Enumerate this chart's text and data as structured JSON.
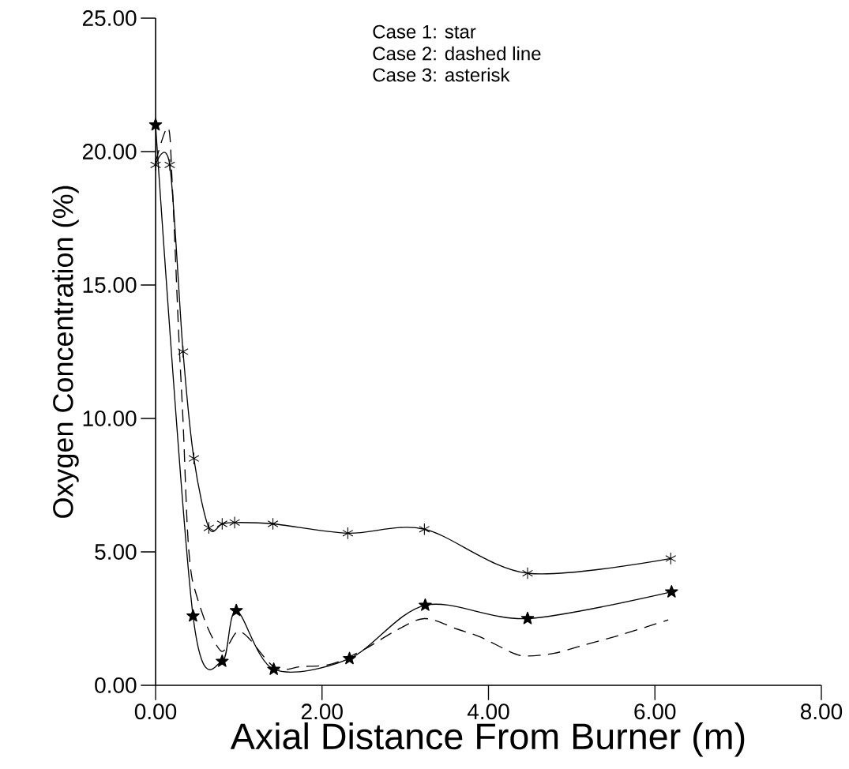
{
  "chart_data": {
    "type": "line",
    "xlabel": "Axial Distance From Burner (m)",
    "ylabel": "Oxygen Concentration (%)",
    "annotations": [
      "Case 1: star",
      "Case 2: dashed line",
      "Case 3: asterisk"
    ],
    "xlim": [
      0,
      8
    ],
    "ylim": [
      0,
      25
    ],
    "xticks": [
      {
        "value": 0,
        "label": "0.00"
      },
      {
        "value": 2,
        "label": "2.00"
      },
      {
        "value": 4,
        "label": "4.00"
      },
      {
        "value": 6,
        "label": "6.00"
      },
      {
        "value": 8,
        "label": "8.00"
      }
    ],
    "yticks": [
      {
        "value": 0,
        "label": "0.00"
      },
      {
        "value": 5,
        "label": "5.00"
      },
      {
        "value": 10,
        "label": "10.00"
      },
      {
        "value": 15,
        "label": "15.00"
      },
      {
        "value": 20,
        "label": "20.00"
      },
      {
        "value": 25,
        "label": "25.00"
      }
    ],
    "series": [
      {
        "color": "#000000",
        "marker": "star",
        "line_style": "solid",
        "x": [
          0.0,
          0.45,
          0.8,
          0.97,
          1.42,
          2.33,
          3.24,
          4.47,
          6.2
        ],
        "values": [
          21.0,
          2.6,
          0.9,
          2.8,
          0.6,
          1.0,
          3.0,
          2.5,
          3.5
        ]
      },
      {
        "color": "#000000",
        "marker": "none",
        "line_style": "dashed",
        "x": [
          0.0,
          0.15,
          0.2,
          0.28,
          0.33,
          0.38,
          0.42,
          0.47,
          0.62,
          0.78,
          0.87,
          0.98,
          1.11,
          1.44,
          1.75,
          2.12,
          2.51,
          2.86,
          3.23,
          3.63,
          3.91,
          4.3,
          4.47,
          4.79,
          5.14,
          5.6,
          6.16
        ],
        "values": [
          19.6,
          20.9,
          18.8,
          13.0,
          9.9,
          6.0,
          4.4,
          3.6,
          2.2,
          1.3,
          1.5,
          2.0,
          1.8,
          0.65,
          0.7,
          0.8,
          1.35,
          2.0,
          2.5,
          2.1,
          1.8,
          1.2,
          1.1,
          1.2,
          1.5,
          1.9,
          2.45
        ]
      },
      {
        "color": "#000000",
        "marker": "cross",
        "line_style": "solid",
        "x": [
          0.0,
          0.17,
          0.33,
          0.46,
          0.64,
          0.8,
          0.95,
          1.41,
          2.31,
          3.23,
          4.47,
          6.19
        ],
        "values": [
          19.5,
          19.5,
          12.5,
          8.5,
          5.9,
          6.05,
          6.1,
          6.05,
          5.7,
          5.85,
          4.2,
          4.75
        ]
      }
    ]
  }
}
